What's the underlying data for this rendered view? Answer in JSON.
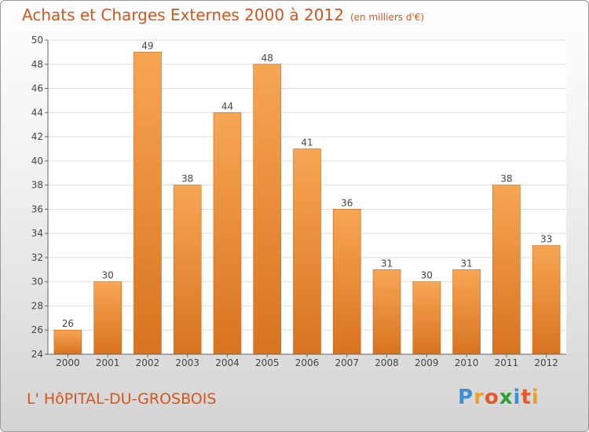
{
  "title": "Achats et Charges Externes 2000 à 2012",
  "unit_note": "(en milliers d'€)",
  "commune": "L' HôPITAL-DU-GROSBOIS",
  "brand": {
    "letters": [
      "P",
      "r",
      "o",
      "x",
      "i",
      "t",
      "i"
    ],
    "colors": [
      "#3d8fd6",
      "#f0a020",
      "#e05a2a",
      "#2e9e3a",
      "#3d8fd6",
      "#e05a2a",
      "#f0a020"
    ]
  },
  "colors": {
    "title": "#d4561d",
    "bar_top": "#f7a654",
    "bar_bottom": "#d8731f",
    "grid": "#dddddd"
  },
  "chart_data": {
    "type": "bar",
    "categories": [
      "2000",
      "2001",
      "2002",
      "2003",
      "2004",
      "2005",
      "2006",
      "2007",
      "2008",
      "2009",
      "2010",
      "2011",
      "2012"
    ],
    "values": [
      26,
      30,
      49,
      38,
      44,
      48,
      41,
      36,
      31,
      30,
      31,
      38,
      33
    ],
    "ylim": [
      24,
      50
    ],
    "yticks": [
      24,
      26,
      28,
      30,
      32,
      34,
      36,
      38,
      40,
      42,
      44,
      46,
      48,
      50
    ],
    "grid": true,
    "data_labels": true
  }
}
